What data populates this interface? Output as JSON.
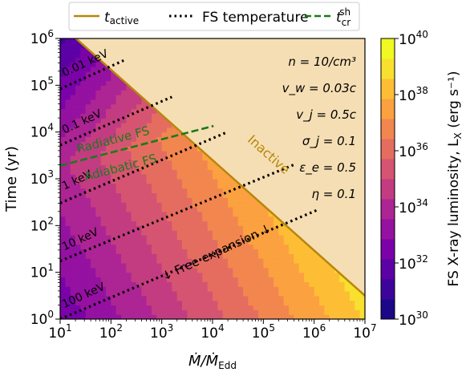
{
  "chart_data": {
    "type": "heatmap",
    "xlabel": "Ṁ/Ṁ",
    "xlabel_sub": "Edd",
    "ylabel": "Time (yr)",
    "colorbar_label": "FS X-ray luminosity, L",
    "colorbar_label_sub": "X",
    "colorbar_label_unit": " (erg s⁻¹)",
    "xlim_exp": [
      1,
      7
    ],
    "ylim_exp": [
      0,
      6
    ],
    "x_log": true,
    "y_log": true,
    "x_tick_exps": [
      1,
      2,
      3,
      4,
      5,
      6,
      7
    ],
    "y_tick_exps": [
      0,
      1,
      2,
      3,
      4,
      5,
      6
    ],
    "colorbar_range_exp": [
      30,
      40
    ],
    "colorbar_tick_exps": [
      30,
      32,
      34,
      36,
      38,
      40
    ],
    "colorbar_levels": [
      "#1c0789",
      "#3d049b",
      "#5c01a6",
      "#7a02a8",
      "#9511a1",
      "#ad2494",
      "#c33c82",
      "#d55471",
      "#e46d60",
      "#f2864f",
      "#fba140",
      "#fdbe35",
      "#f8e12e",
      "#f0f921"
    ],
    "legend": [
      {
        "label": "t",
        "sub": "active",
        "style": "solid",
        "color": "#b8860b"
      },
      {
        "label": "FS temperature",
        "style": "dotted",
        "color": "#000000"
      },
      {
        "label": "t",
        "sub": "cr",
        "sup": "sh",
        "style": "dashed",
        "color": "#1a7a1a"
      }
    ],
    "active_line": {
      "x_exp": [
        1,
        7
      ],
      "y_exp": [
        6.3,
        0.5
      ]
    },
    "cooling_line": {
      "x_exp": [
        1,
        4.02
      ],
      "y_exp": [
        3.28,
        4.13
      ]
    },
    "temperature_lines": [
      {
        "label": "0.01 keV",
        "x_exp": [
          1,
          2.25
        ],
        "y_exp": [
          4.92,
          5.53
        ]
      },
      {
        "label": "0.1 keV",
        "x_exp": [
          1,
          3.2
        ],
        "y_exp": [
          3.72,
          4.75
        ]
      },
      {
        "label": "1 keV",
        "x_exp": [
          1,
          4.25
        ],
        "y_exp": [
          2.48,
          3.98
        ]
      },
      {
        "label": "10 keV",
        "x_exp": [
          1,
          5.6
        ],
        "y_exp": [
          1.24,
          3.3
        ]
      },
      {
        "label": "100 keV",
        "x_exp": [
          1,
          6.1
        ],
        "y_exp": [
          0.0,
          2.35
        ]
      }
    ],
    "parameters": [
      "n = 10/cm³",
      "v_w = 0.03c",
      "v_j = 0.5c",
      "σ_j = 0.1",
      "ε_e = 0.5",
      "η = 0.1"
    ],
    "annotations": {
      "inactive": "Inactive",
      "radiative": "Radiative FS",
      "adiabatic": "Adiabatic FS",
      "free_expansion": "↓ Free expansion ↓"
    },
    "inactive_color": "#f5deb3"
  }
}
